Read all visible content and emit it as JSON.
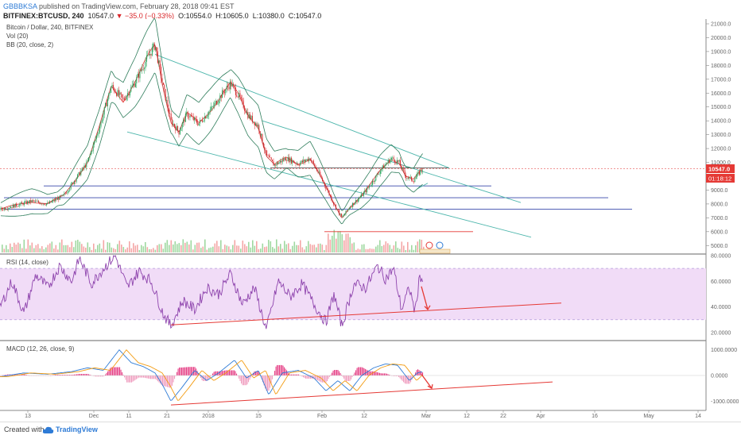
{
  "header": {
    "user": "GBBBKSA",
    "published_text": "published on TradingView.com, February 28, 2018 09:41 EST",
    "symbol": "BITFINEX:BTCUSD, 240",
    "change": "▼ −35.0 (−0.33%)",
    "open": "O:10554.0",
    "high": "H:10605.0",
    "low": "L:10380.0",
    "close": "C:10547.0",
    "price": "10547.0"
  },
  "legend": {
    "title": "Bitcoin / Dollar, 240, BITFINEX",
    "vol": "Vol (20)",
    "bb": "BB (20, close, 2)",
    "rsi": "RSI (14, close)",
    "macd": "MACD (12, 26, close, 9)"
  },
  "price_badge": {
    "value": "10547.0",
    "countdown": "01:18:12"
  },
  "footer": {
    "created_with": "Created with",
    "brand": "TradingView"
  },
  "colors": {
    "price_badge": "#e53935",
    "countdown_badge": "#e53935",
    "rsi_band": "#f1dcf7",
    "rsi_line": "#8e44ad",
    "trend": "#e53935",
    "channel": "#4db6ac",
    "support": "#3949ab"
  },
  "chart_data": {
    "type": "line",
    "x_axis": [
      "13",
      "Dec",
      "11",
      "21",
      "2018",
      "15",
      "Feb",
      "12",
      "Mar",
      "12",
      "22",
      "Apr",
      "16",
      "May",
      "14"
    ],
    "price_axis": {
      "ylim": [
        4500,
        21000
      ],
      "ticks": [
        "21000.0",
        "20000.0",
        "19000.0",
        "18000.0",
        "17000.0",
        "16000.0",
        "15000.0",
        "14000.0",
        "13000.0",
        "12000.0",
        "11000.0",
        "10000.0",
        "9000.0",
        "8000.0",
        "7000.0",
        "6000.0",
        "5000.0"
      ]
    },
    "rsi_axis": {
      "ylim": [
        15,
        80
      ],
      "ticks": [
        "80.0000",
        "60.0000",
        "40.0000",
        "20.0000"
      ],
      "band": [
        30,
        70
      ]
    },
    "macd_axis": {
      "ylim": [
        -1300,
        1300
      ],
      "ticks": [
        "1000.0000",
        "0.0000",
        "-1000.0000"
      ]
    },
    "price_series": [
      {
        "x": 0,
        "y": 7600
      },
      {
        "x": 20,
        "y": 7900
      },
      {
        "x": 40,
        "y": 8200
      },
      {
        "x": 60,
        "y": 8000
      },
      {
        "x": 80,
        "y": 8600
      },
      {
        "x": 95,
        "y": 9800
      },
      {
        "x": 110,
        "y": 11000
      },
      {
        "x": 125,
        "y": 13500
      },
      {
        "x": 140,
        "y": 16500
      },
      {
        "x": 155,
        "y": 15500
      },
      {
        "x": 170,
        "y": 16800
      },
      {
        "x": 185,
        "y": 18500
      },
      {
        "x": 195,
        "y": 19500
      },
      {
        "x": 205,
        "y": 16500
      },
      {
        "x": 215,
        "y": 14000
      },
      {
        "x": 225,
        "y": 13200
      },
      {
        "x": 235,
        "y": 14500
      },
      {
        "x": 250,
        "y": 13800
      },
      {
        "x": 265,
        "y": 14800
      },
      {
        "x": 280,
        "y": 16000
      },
      {
        "x": 290,
        "y": 16700
      },
      {
        "x": 300,
        "y": 15800
      },
      {
        "x": 312,
        "y": 14400
      },
      {
        "x": 325,
        "y": 13600
      },
      {
        "x": 335,
        "y": 11500
      },
      {
        "x": 345,
        "y": 10800
      },
      {
        "x": 360,
        "y": 11300
      },
      {
        "x": 375,
        "y": 10900
      },
      {
        "x": 390,
        "y": 11300
      },
      {
        "x": 400,
        "y": 10300
      },
      {
        "x": 410,
        "y": 9200
      },
      {
        "x": 420,
        "y": 8000
      },
      {
        "x": 430,
        "y": 7000
      },
      {
        "x": 440,
        "y": 7800
      },
      {
        "x": 455,
        "y": 8600
      },
      {
        "x": 465,
        "y": 9300
      },
      {
        "x": 478,
        "y": 10400
      },
      {
        "x": 492,
        "y": 11300
      },
      {
        "x": 502,
        "y": 11000
      },
      {
        "x": 510,
        "y": 10000
      },
      {
        "x": 520,
        "y": 9700
      },
      {
        "x": 528,
        "y": 10300
      },
      {
        "x": 532,
        "y": 10547
      }
    ],
    "horizontal_levels": [
      {
        "y": 10547,
        "x1": 0,
        "x2": 888,
        "color": "#e88",
        "dash": true
      },
      {
        "y": 10600,
        "x1": 340,
        "x2": 565,
        "color": "#555"
      },
      {
        "y": 9300,
        "x1": 55,
        "x2": 618,
        "color": "#3949ab"
      },
      {
        "y": 8450,
        "x1": 5,
        "x2": 765,
        "color": "#3949ab"
      },
      {
        "y": 7620,
        "x1": 5,
        "x2": 795,
        "color": "#3949ab"
      },
      {
        "y": 6000,
        "x1": 408,
        "x2": 595,
        "color": "#e53935"
      }
    ],
    "channel_lines": [
      {
        "x1": 195,
        "y1": 18800,
        "x2": 565,
        "y2": 10600
      },
      {
        "x1": 160,
        "y1": 13200,
        "x2": 668,
        "y2": 5600
      },
      {
        "x1": 330,
        "y1": 14000,
        "x2": 655,
        "y2": 8100
      },
      {
        "x1": 525,
        "y1": 9100,
        "x2": 538,
        "y2": 9500
      }
    ],
    "rsi_series": [
      {
        "x": 0,
        "y": 40
      },
      {
        "x": 15,
        "y": 60
      },
      {
        "x": 30,
        "y": 35
      },
      {
        "x": 45,
        "y": 65
      },
      {
        "x": 60,
        "y": 55
      },
      {
        "x": 75,
        "y": 72
      },
      {
        "x": 90,
        "y": 60
      },
      {
        "x": 100,
        "y": 78
      },
      {
        "x": 115,
        "y": 58
      },
      {
        "x": 130,
        "y": 70
      },
      {
        "x": 145,
        "y": 80
      },
      {
        "x": 160,
        "y": 55
      },
      {
        "x": 175,
        "y": 68
      },
      {
        "x": 190,
        "y": 60
      },
      {
        "x": 205,
        "y": 35
      },
      {
        "x": 215,
        "y": 25
      },
      {
        "x": 230,
        "y": 45
      },
      {
        "x": 245,
        "y": 38
      },
      {
        "x": 260,
        "y": 55
      },
      {
        "x": 275,
        "y": 50
      },
      {
        "x": 290,
        "y": 66
      },
      {
        "x": 305,
        "y": 42
      },
      {
        "x": 320,
        "y": 55
      },
      {
        "x": 335,
        "y": 22
      },
      {
        "x": 350,
        "y": 60
      },
      {
        "x": 365,
        "y": 48
      },
      {
        "x": 380,
        "y": 58
      },
      {
        "x": 395,
        "y": 42
      },
      {
        "x": 410,
        "y": 28
      },
      {
        "x": 420,
        "y": 50
      },
      {
        "x": 430,
        "y": 25
      },
      {
        "x": 445,
        "y": 58
      },
      {
        "x": 460,
        "y": 55
      },
      {
        "x": 475,
        "y": 72
      },
      {
        "x": 485,
        "y": 62
      },
      {
        "x": 495,
        "y": 70
      },
      {
        "x": 505,
        "y": 38
      },
      {
        "x": 515,
        "y": 55
      },
      {
        "x": 522,
        "y": 36
      },
      {
        "x": 528,
        "y": 65
      },
      {
        "x": 532,
        "y": 60
      }
    ],
    "rsi_trend": {
      "x1": 215,
      "y1": 26,
      "x2": 706,
      "y2": 43
    },
    "rsi_arrow": {
      "x1": 530,
      "y1": 56,
      "x2": 538,
      "y2": 38
    },
    "macd_series": [
      {
        "x": 0,
        "y": -50
      },
      {
        "x": 30,
        "y": 100
      },
      {
        "x": 60,
        "y": 50
      },
      {
        "x": 90,
        "y": 150
      },
      {
        "x": 110,
        "y": 300
      },
      {
        "x": 130,
        "y": 200
      },
      {
        "x": 150,
        "y": 1000
      },
      {
        "x": 165,
        "y": 500
      },
      {
        "x": 180,
        "y": 350
      },
      {
        "x": 195,
        "y": 100
      },
      {
        "x": 205,
        "y": -400
      },
      {
        "x": 215,
        "y": -1000
      },
      {
        "x": 228,
        "y": -500
      },
      {
        "x": 245,
        "y": 200
      },
      {
        "x": 260,
        "y": -200
      },
      {
        "x": 275,
        "y": 100
      },
      {
        "x": 295,
        "y": 600
      },
      {
        "x": 310,
        "y": -100
      },
      {
        "x": 325,
        "y": 200
      },
      {
        "x": 338,
        "y": -750
      },
      {
        "x": 355,
        "y": 100
      },
      {
        "x": 375,
        "y": 200
      },
      {
        "x": 395,
        "y": -100
      },
      {
        "x": 410,
        "y": -600
      },
      {
        "x": 425,
        "y": -200
      },
      {
        "x": 440,
        "y": -600
      },
      {
        "x": 455,
        "y": 0
      },
      {
        "x": 470,
        "y": 300
      },
      {
        "x": 485,
        "y": 450
      },
      {
        "x": 500,
        "y": 400
      },
      {
        "x": 515,
        "y": -200
      },
      {
        "x": 525,
        "y": 100
      },
      {
        "x": 532,
        "y": 150
      }
    ],
    "macd_trend": {
      "x1": 215,
      "y1": -1150,
      "x2": 695,
      "y2": -250
    },
    "macd_arrow": {
      "x1": 530,
      "y1": 50,
      "x2": 543,
      "y2": -500
    }
  }
}
